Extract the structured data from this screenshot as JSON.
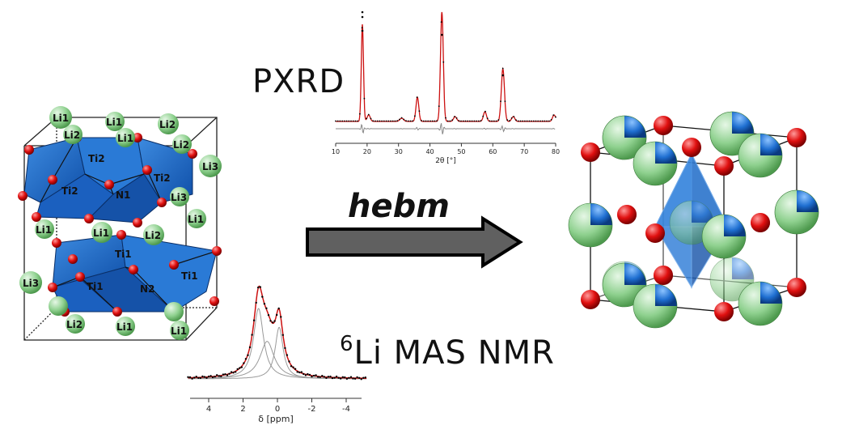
{
  "labels": {
    "pxrd": "PXRD",
    "nmr_sup": "6",
    "nmr_main": "Li MAS NMR",
    "process": "hebm"
  },
  "structure_left": {
    "atom_labels": {
      "li1": "Li1",
      "li2": "Li2",
      "li3": "Li3",
      "ti1": "Ti1",
      "ti2": "Ti2",
      "n1": "N1",
      "n2": "N2"
    }
  },
  "pxrd_plot": {
    "xlabel": "2θ [°]",
    "xticks": [
      "10",
      "20",
      "30",
      "40",
      "50",
      "60",
      "70",
      "80"
    ]
  },
  "nmr_plot": {
    "xlabel": "δ [ppm]",
    "xticks": [
      "4",
      "2",
      "0",
      "-2",
      "-4"
    ]
  },
  "colors": {
    "octahedra": "#1f6fd1",
    "anion_red": "#e01010",
    "lithium_green": "#8fd18f",
    "fit_red": "#cc1010",
    "arrow_gray": "#606060"
  }
}
